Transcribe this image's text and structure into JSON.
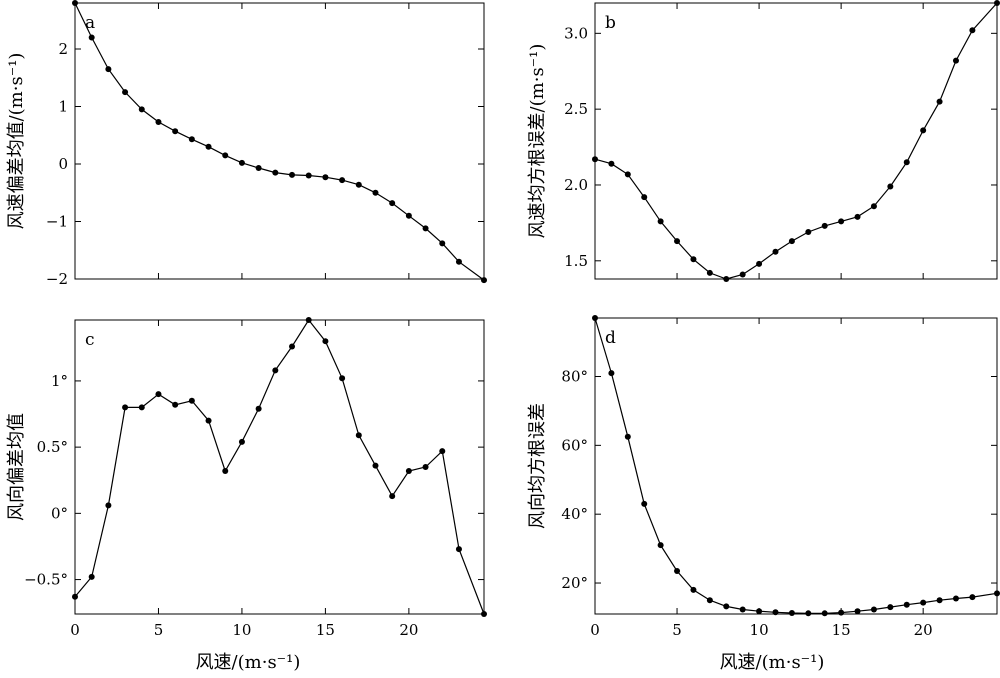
{
  "figure": {
    "xlabel": "风速/(m·s⁻¹)"
  },
  "chart_data": [
    {
      "id": "a",
      "type": "line",
      "panel_label": "a",
      "ylabel": "风速偏差均值/(m·s⁻¹)",
      "xlabel": "",
      "xlim": [
        0,
        24.5
      ],
      "ylim": [
        -2,
        2.8
      ],
      "xticks": [
        0,
        5,
        10,
        15,
        20
      ],
      "xtick_labels": [
        "",
        "",
        "",
        "",
        ""
      ],
      "yticks": [
        -2,
        -1,
        0,
        1,
        2
      ],
      "ytick_labels": [
        "−2",
        "−1",
        "0",
        "1",
        "2"
      ],
      "series": [
        {
          "x": [
            0,
            1,
            2,
            3,
            4,
            5,
            6,
            7,
            8,
            9,
            10,
            11,
            12,
            13,
            14,
            15,
            16,
            17,
            18,
            19,
            20,
            21,
            22,
            23,
            24.5
          ],
          "values": [
            2.8,
            2.2,
            1.65,
            1.25,
            0.95,
            0.73,
            0.57,
            0.43,
            0.3,
            0.15,
            0.02,
            -0.07,
            -0.15,
            -0.19,
            -0.2,
            -0.23,
            -0.28,
            -0.36,
            -0.5,
            -0.68,
            -0.9,
            -1.12,
            -1.38,
            -1.7,
            -2.02
          ]
        }
      ]
    },
    {
      "id": "b",
      "type": "line",
      "panel_label": "b",
      "ylabel": "风速均方根误差/(m·s⁻¹)",
      "xlabel": "",
      "xlim": [
        0,
        24.5
      ],
      "ylim": [
        1.38,
        3.2
      ],
      "xticks": [
        0,
        5,
        10,
        15,
        20
      ],
      "xtick_labels": [
        "",
        "",
        "",
        "",
        ""
      ],
      "yticks": [
        1.5,
        2.0,
        2.5,
        3.0
      ],
      "ytick_labels": [
        "1.5",
        "2.0",
        "2.5",
        "3.0"
      ],
      "series": [
        {
          "x": [
            0,
            1,
            2,
            3,
            4,
            5,
            6,
            7,
            8,
            9,
            10,
            11,
            12,
            13,
            14,
            15,
            16,
            17,
            18,
            19,
            20,
            21,
            22,
            23,
            24.5
          ],
          "values": [
            2.17,
            2.14,
            2.07,
            1.92,
            1.76,
            1.63,
            1.51,
            1.42,
            1.38,
            1.41,
            1.48,
            1.56,
            1.63,
            1.69,
            1.73,
            1.76,
            1.79,
            1.86,
            1.99,
            2.15,
            2.36,
            2.55,
            2.82,
            3.02,
            3.2
          ]
        }
      ]
    },
    {
      "id": "c",
      "type": "line",
      "panel_label": "c",
      "ylabel": "风向偏差均值",
      "xlabel": "风速/(m·s⁻¹)",
      "xlim": [
        0,
        24.5
      ],
      "ylim": [
        -0.76,
        1.46
      ],
      "xticks": [
        0,
        5,
        10,
        15,
        20
      ],
      "xtick_labels": [
        "0",
        "5",
        "10",
        "15",
        "20"
      ],
      "yticks": [
        -0.5,
        0,
        0.5,
        1
      ],
      "ytick_labels": [
        "−0.5°",
        "0°",
        "0.5°",
        "1°"
      ],
      "series": [
        {
          "x": [
            0,
            1,
            2,
            3,
            4,
            5,
            6,
            7,
            8,
            9,
            10,
            11,
            12,
            13,
            14,
            15,
            16,
            17,
            18,
            19,
            20,
            21,
            22,
            23,
            24.5
          ],
          "values": [
            -0.63,
            -0.48,
            0.06,
            0.8,
            0.8,
            0.9,
            0.82,
            0.85,
            0.7,
            0.32,
            0.54,
            0.79,
            1.08,
            1.26,
            1.46,
            1.3,
            1.02,
            0.59,
            0.36,
            0.13,
            0.32,
            0.35,
            0.47,
            -0.27,
            -0.76
          ]
        }
      ]
    },
    {
      "id": "d",
      "type": "line",
      "panel_label": "d",
      "ylabel": "风向均方根误差",
      "xlabel": "风速/(m·s⁻¹)",
      "xlim": [
        0,
        24.5
      ],
      "ylim": [
        11,
        97
      ],
      "xticks": [
        0,
        5,
        10,
        15,
        20
      ],
      "xtick_labels": [
        "0",
        "5",
        "10",
        "15",
        "20"
      ],
      "yticks": [
        20,
        40,
        60,
        80
      ],
      "ytick_labels": [
        "20°",
        "40°",
        "60°",
        "80°"
      ],
      "series": [
        {
          "x": [
            0,
            1,
            2,
            3,
            4,
            5,
            6,
            7,
            8,
            9,
            10,
            11,
            12,
            13,
            14,
            15,
            16,
            17,
            18,
            19,
            20,
            21,
            22,
            23,
            24.5
          ],
          "values": [
            97,
            81,
            62.5,
            43,
            31,
            23.5,
            18,
            15,
            13.2,
            12.3,
            11.8,
            11.5,
            11.3,
            11.2,
            11.2,
            11.4,
            11.8,
            12.3,
            13,
            13.7,
            14.3,
            15,
            15.5,
            15.9,
            17
          ]
        }
      ]
    }
  ]
}
